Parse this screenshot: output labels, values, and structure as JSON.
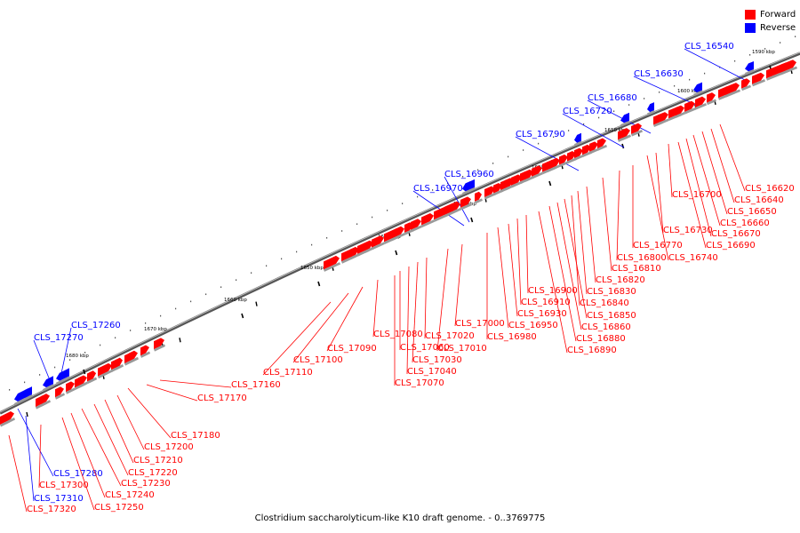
{
  "legend": {
    "forward_label": "Forward",
    "reverse_label": "Reverse",
    "forward_color": "#ff0000",
    "reverse_color": "#0000ff"
  },
  "caption": "Clostridium saccharolyticum-like K10 draft genome. - 0..3769775",
  "scale_labels": [
    "1590 kbp",
    "1600 kbp",
    "1610 kbp",
    "1620 kbp",
    "1630 kbp",
    "1640 kbp",
    "1650 kbp",
    "1660 kbp",
    "1670 kbp",
    "1680 kbp"
  ],
  "reverse_genes": [
    "CLS_16540",
    "CLS_16630",
    "CLS_16680",
    "CLS_16720",
    "CLS_16790",
    "CLS_16960",
    "CLS_16970",
    "CLS_17260",
    "CLS_17270",
    "CLS_17280",
    "CLS_17310"
  ],
  "forward_genes": [
    "CLS_16620",
    "CLS_16640",
    "CLS_16650",
    "CLS_16660",
    "CLS_16670",
    "CLS_16690",
    "CLS_16700",
    "CLS_16730",
    "CLS_16740",
    "CLS_16770",
    "CLS_16800",
    "CLS_16810",
    "CLS_16820",
    "CLS_16830",
    "CLS_16840",
    "CLS_16850",
    "CLS_16860",
    "CLS_16880",
    "CLS_16890",
    "CLS_16900",
    "CLS_16910",
    "CLS_16930",
    "CLS_16950",
    "CLS_16980",
    "CLS_17000",
    "CLS_17010",
    "CLS_17020",
    "CLS_17030",
    "CLS_17040",
    "CLS_17060",
    "CLS_17070",
    "CLS_17080",
    "CLS_17090",
    "CLS_17100",
    "CLS_17110",
    "CLS_17160",
    "CLS_17170",
    "CLS_17180",
    "CLS_17200",
    "CLS_17210",
    "CLS_17220",
    "CLS_17230",
    "CLS_17240",
    "CLS_17250",
    "CLS_17300",
    "CLS_17320"
  ]
}
